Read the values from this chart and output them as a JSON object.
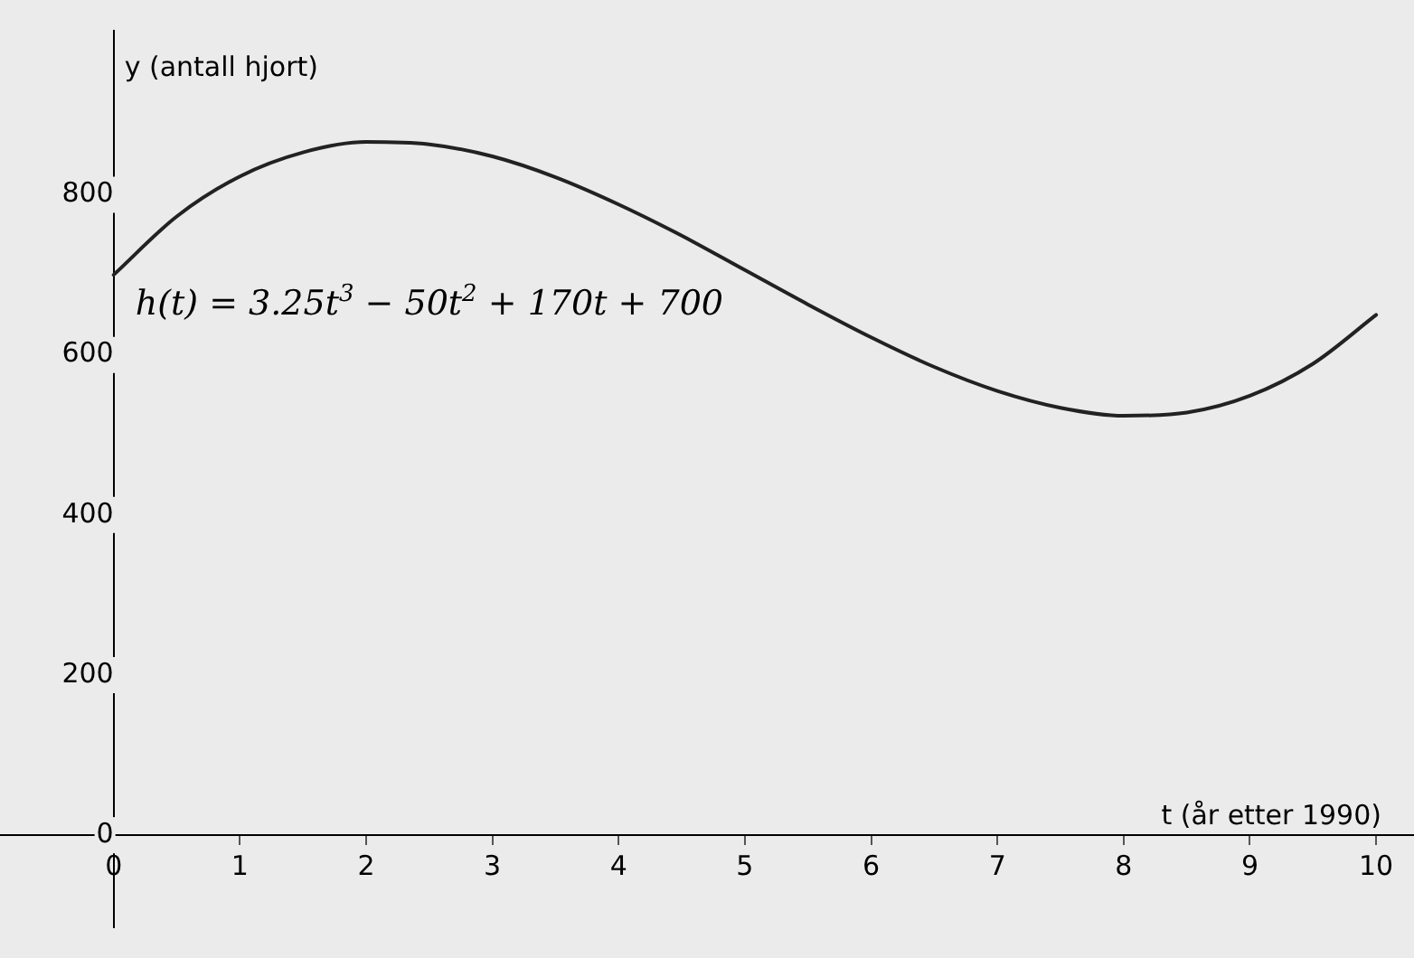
{
  "chart_data": {
    "type": "line",
    "xlabel": "t (år etter 1990)",
    "ylabel": "y (antall hjort)",
    "annotations": [
      "h(t) = 3.25t$^{3}$ − 50t$^{2}$ + 170t + 700"
    ],
    "x": [
      0,
      0.5,
      1,
      1.5,
      2,
      2.5,
      3,
      3.5,
      4,
      4.5,
      5,
      5.5,
      6,
      6.5,
      7,
      7.5,
      8,
      8.5,
      9,
      9.5,
      10
    ],
    "series": [
      {
        "color": "#222222",
        "values": [
          700,
          773,
          823,
          853,
          866,
          863,
          848,
          822,
          788,
          749,
          706,
          663,
          622,
          585,
          555,
          534,
          524,
          528,
          549,
          589,
          650
        ]
      }
    ],
    "xlim": [
      -0.9,
      10.3
    ],
    "ylim": [
      -115,
      1005
    ],
    "xticks": [
      0,
      1,
      2,
      3,
      4,
      5,
      6,
      7,
      8,
      9,
      10
    ],
    "yticks": [
      0,
      200,
      400,
      600,
      800
    ],
    "grid": false,
    "legend": false,
    "marker": "none",
    "line_style": "solid"
  }
}
